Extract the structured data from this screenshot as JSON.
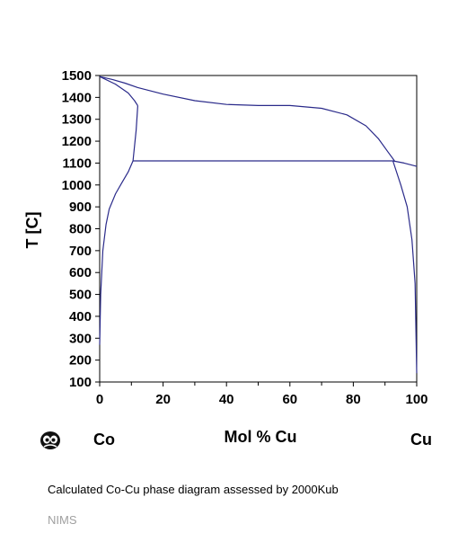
{
  "chart_data": {
    "type": "line",
    "xlabel": "Mol % Cu",
    "ylabel": "T [C]",
    "xlim": [
      0,
      100
    ],
    "ylim": [
      100,
      1500
    ],
    "x_ticks": [
      0,
      20,
      40,
      60,
      80,
      100
    ],
    "y_ticks": [
      100,
      200,
      300,
      400,
      500,
      600,
      700,
      800,
      900,
      1000,
      1100,
      1200,
      1300,
      1400,
      1500
    ],
    "grid": false,
    "legend": "none",
    "line_color": "#2a2a8a",
    "component_left": "Co",
    "component_right": "Cu",
    "series": [
      {
        "x": [
          0,
          4,
          8,
          12,
          20,
          30,
          40,
          50,
          60,
          70,
          78,
          84,
          88,
          91,
          93
        ],
        "y": [
          1495,
          1482,
          1465,
          1445,
          1415,
          1385,
          1368,
          1363,
          1363,
          1350,
          1320,
          1270,
          1210,
          1150,
          1110
        ]
      },
      {
        "x": [
          0,
          5,
          9,
          11,
          12
        ],
        "y": [
          1495,
          1460,
          1420,
          1385,
          1362
        ]
      },
      {
        "x": [
          0,
          0.3,
          1,
          2,
          3,
          5,
          7,
          9,
          10.5,
          11.5,
          12
        ],
        "y": [
          270,
          500,
          700,
          820,
          890,
          960,
          1010,
          1060,
          1110,
          1250,
          1362
        ]
      },
      {
        "x": [
          10.5,
          92.5
        ],
        "y": [
          1110,
          1110
        ]
      },
      {
        "x": [
          92.5,
          96,
          100
        ],
        "y": [
          1110,
          1100,
          1085
        ]
      },
      {
        "x": [
          92.5,
          95,
          97,
          98.5,
          99.5,
          100
        ],
        "y": [
          1110,
          1000,
          900,
          750,
          550,
          140
        ]
      }
    ]
  },
  "caption": "Calculated Co-Cu phase diagram assessed by 2000Kub",
  "source": "NIMS"
}
